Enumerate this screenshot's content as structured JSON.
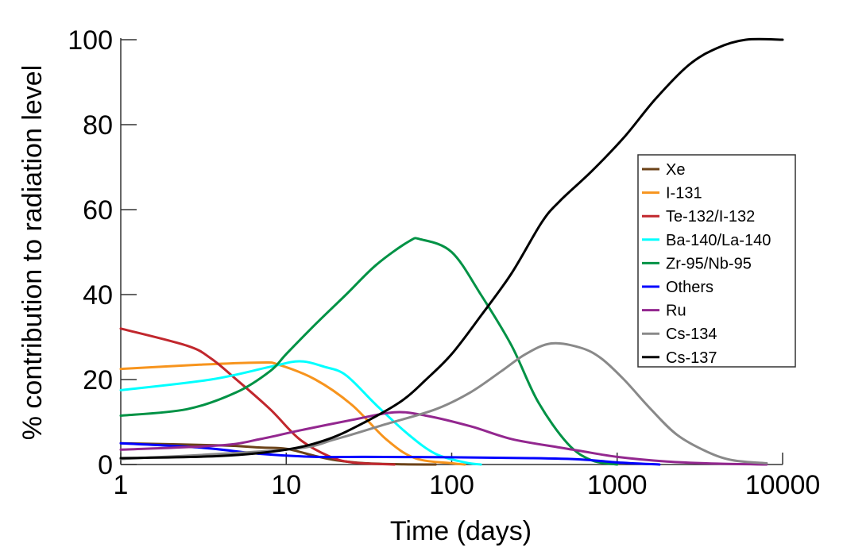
{
  "chart_data": {
    "type": "line",
    "title": "",
    "xlabel": "Time (days)",
    "ylabel": "% contribution to radiation level",
    "xscale": "log",
    "xlim": [
      1,
      10000
    ],
    "ylim": [
      0,
      100
    ],
    "xticks": [
      "1",
      "10",
      "100",
      "1000",
      "10000"
    ],
    "yticks": [
      "0",
      "20",
      "40",
      "60",
      "80",
      "100"
    ],
    "grid": false,
    "legend_position": "right",
    "series": [
      {
        "name": "Xe",
        "color": "#6b4218",
        "x": [
          1,
          4,
          7,
          10,
          15,
          20,
          30,
          50,
          80
        ],
        "y": [
          5,
          4.5,
          4,
          3.7,
          2,
          1,
          0.3,
          0.05,
          0
        ]
      },
      {
        "name": "I-131",
        "color": "#f7941d",
        "x": [
          1,
          3,
          7,
          9,
          15,
          25,
          40,
          60,
          100,
          120
        ],
        "y": [
          22.5,
          23.5,
          24,
          23.5,
          20,
          14,
          6,
          1.5,
          0.3,
          0
        ]
      },
      {
        "name": "Te-132/I-132",
        "color": "#c1272d",
        "x": [
          1,
          2.5,
          3.5,
          5,
          8,
          12,
          18,
          25,
          45
        ],
        "y": [
          32,
          28,
          25,
          20,
          13,
          6,
          2,
          0.5,
          0
        ]
      },
      {
        "name": "Ba-140/La-140",
        "color": "#00ffff",
        "x": [
          1,
          3.5,
          8,
          12,
          17,
          23,
          35,
          55,
          80,
          120,
          150
        ],
        "y": [
          17.5,
          20,
          23,
          24.3,
          23,
          21,
          14,
          7,
          2.5,
          0.5,
          0
        ]
      },
      {
        "name": "Zr-95/Nb-95",
        "color": "#009245",
        "x": [
          1,
          2.5,
          5,
          8,
          10,
          15,
          23,
          35,
          55,
          65,
          100,
          150,
          230,
          330,
          500,
          700,
          1000
        ],
        "y": [
          11.5,
          13,
          17,
          22,
          26,
          33,
          40,
          47,
          52.5,
          53,
          50,
          40,
          28,
          15,
          5,
          1,
          0
        ]
      },
      {
        "name": "Others",
        "color": "#0000ff",
        "x": [
          1,
          3,
          7,
          15,
          30,
          100,
          300,
          600,
          1000,
          1800
        ],
        "y": [
          5,
          4,
          2.5,
          1.8,
          1.8,
          1.7,
          1.5,
          1.2,
          0.5,
          0
        ]
      },
      {
        "name": "Ru",
        "color": "#93278f",
        "x": [
          1,
          4,
          7,
          12,
          25,
          45,
          70,
          130,
          230,
          450,
          600,
          1000,
          2000,
          4000,
          8000
        ],
        "y": [
          3.5,
          4.5,
          6,
          8,
          10.5,
          12.3,
          11.5,
          9,
          6,
          4,
          3.2,
          1.8,
          0.7,
          0.2,
          0
        ]
      },
      {
        "name": "Cs-134",
        "color": "#898989",
        "x": [
          1,
          10,
          20,
          40,
          80,
          130,
          200,
          280,
          400,
          600,
          800,
          1100,
          1600,
          2300,
          3500,
          5000,
          8000
        ],
        "y": [
          1.3,
          3.5,
          6,
          9.5,
          13,
          17,
          22,
          26,
          28.5,
          27.5,
          25,
          20,
          13,
          7,
          3,
          1,
          0.3
        ]
      },
      {
        "name": "Cs-137",
        "color": "#000000",
        "x": [
          1,
          4,
          10,
          18,
          30,
          50,
          70,
          100,
          150,
          230,
          350,
          450,
          700,
          1100,
          1700,
          2700,
          4000,
          6000,
          10000
        ],
        "y": [
          1.5,
          2,
          3.5,
          6,
          10,
          15,
          20,
          26,
          35,
          45,
          57,
          62,
          69,
          77,
          86,
          94,
          98,
          100,
          100
        ]
      }
    ]
  }
}
